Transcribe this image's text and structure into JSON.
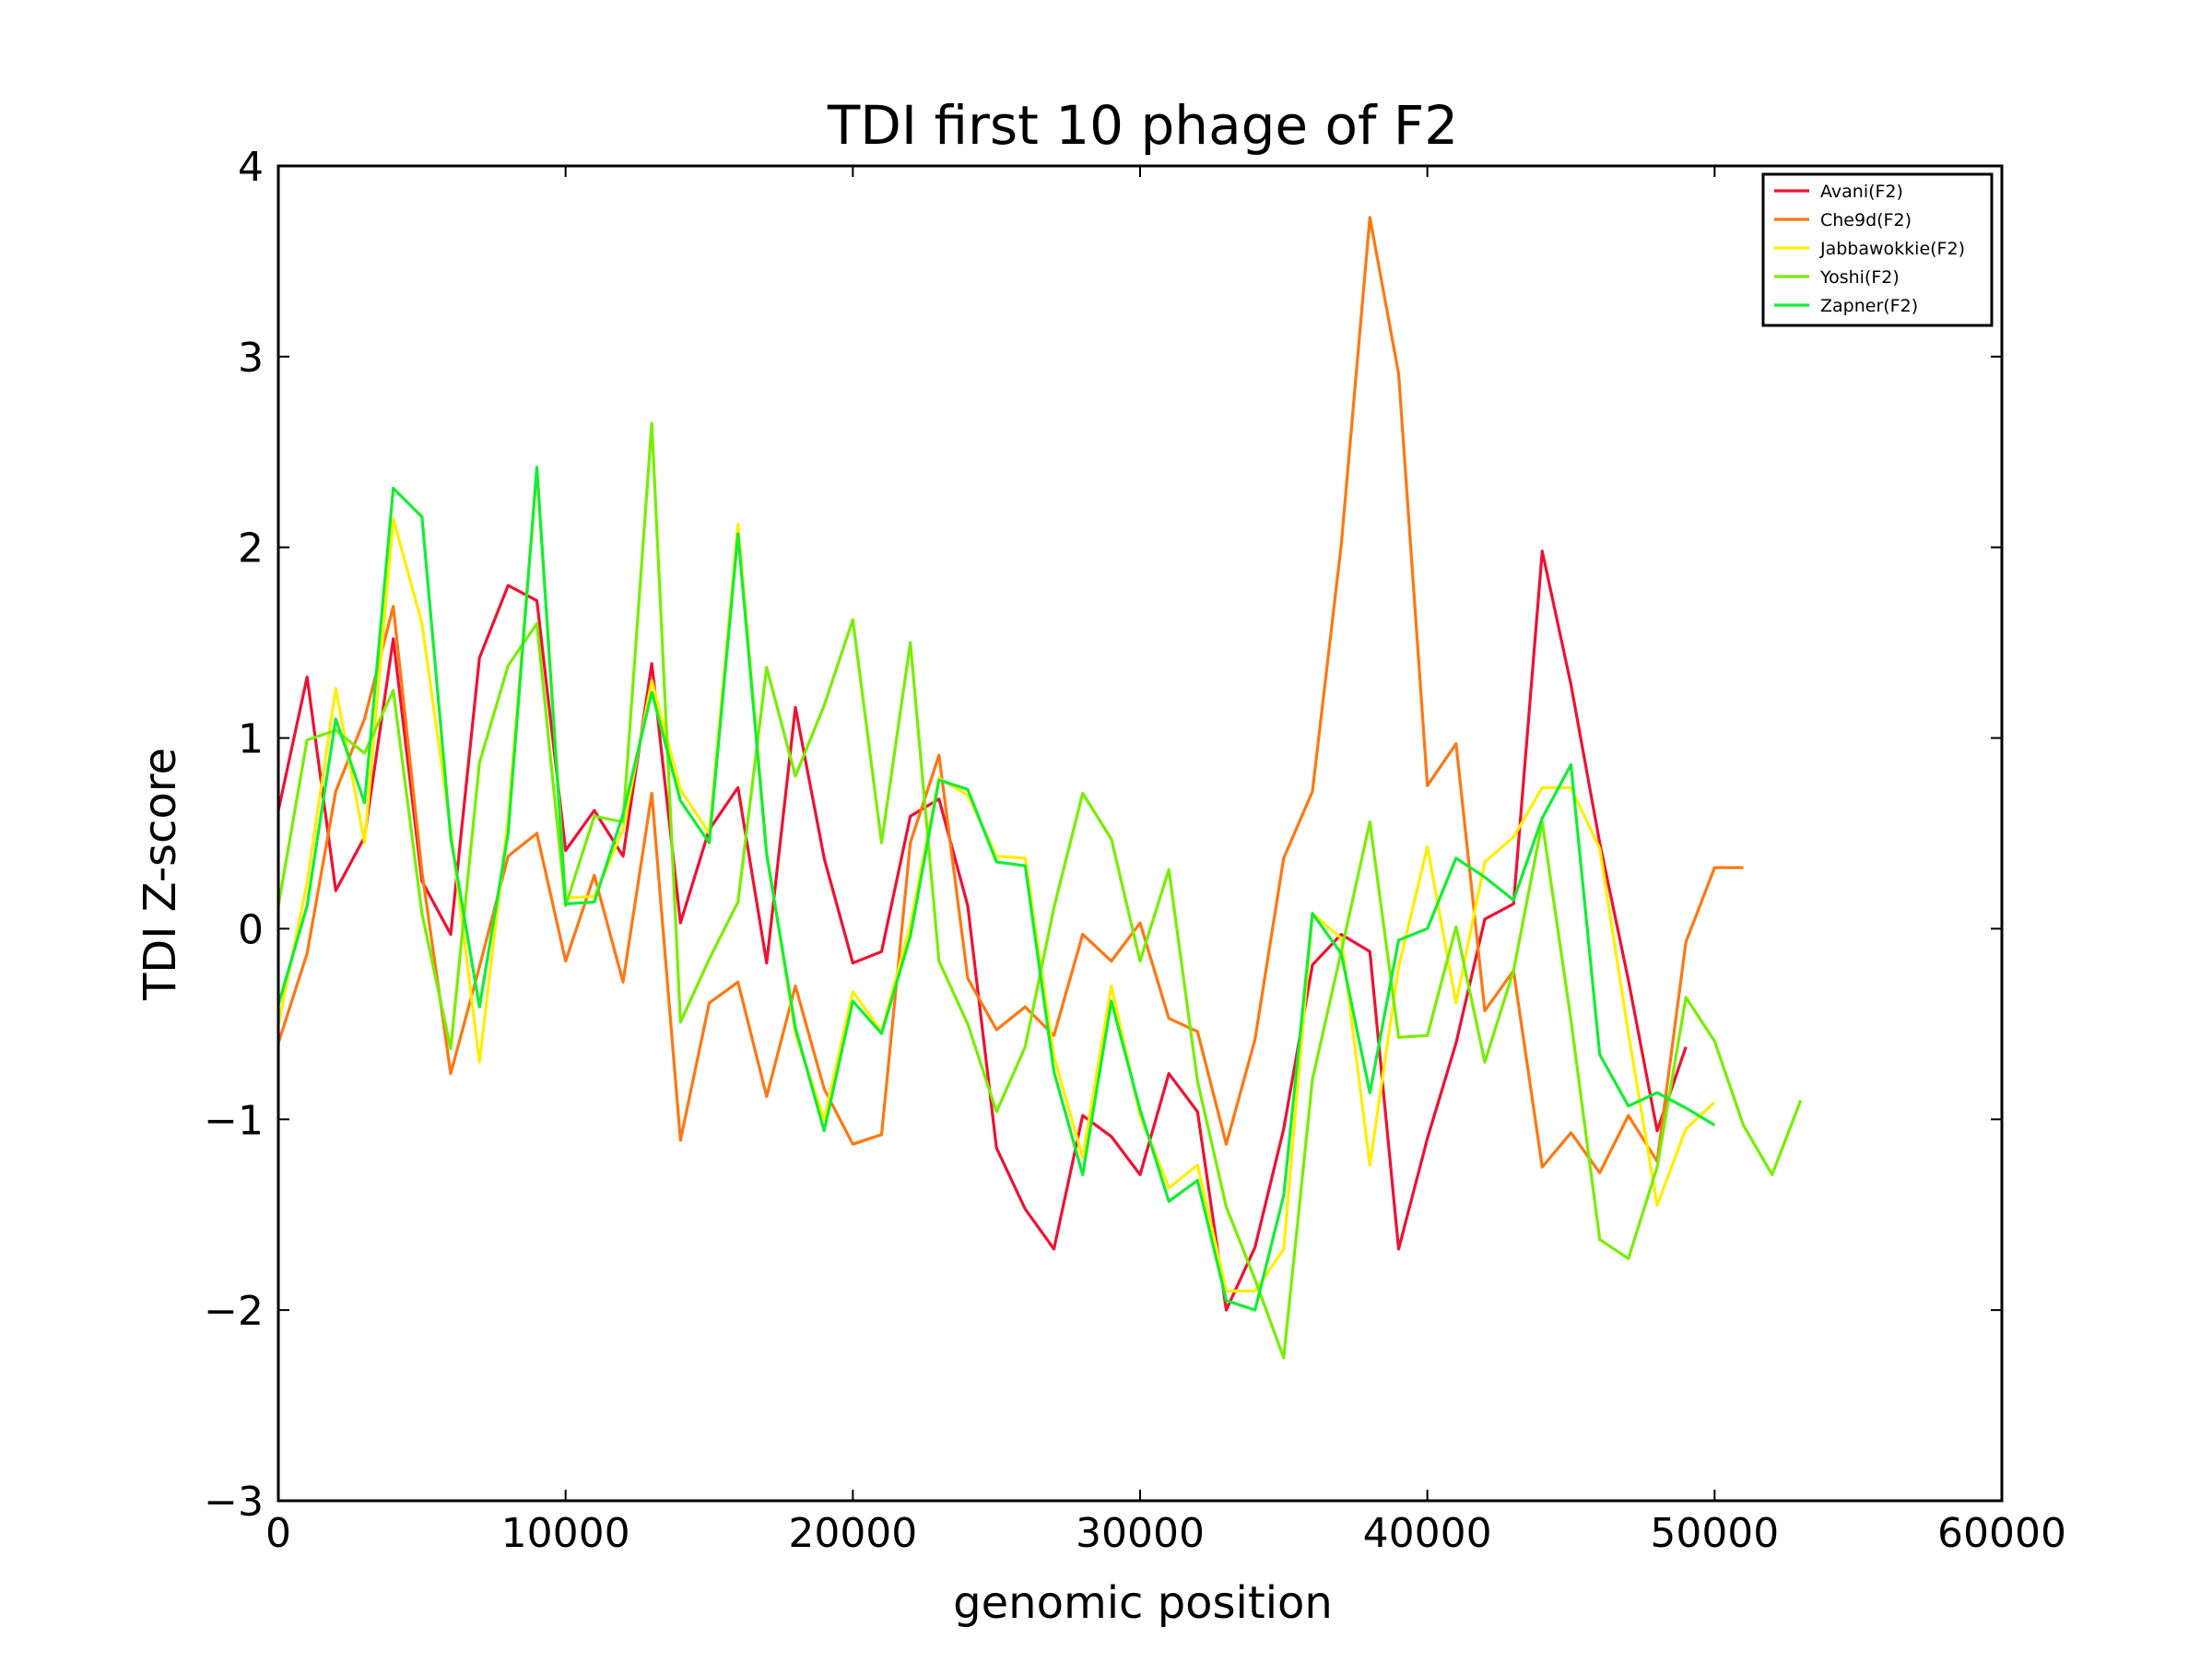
{
  "chart_data": {
    "type": "line",
    "title": "TDI first 10 phage of F2",
    "xlabel": "genomic position",
    "ylabel": "TDI Z-score",
    "xlim": [
      0,
      60000
    ],
    "ylim": [
      -3,
      4
    ],
    "xticks": [
      0,
      10000,
      20000,
      30000,
      40000,
      50000,
      60000
    ],
    "xtick_labels": [
      "0",
      "10000",
      "20000",
      "30000",
      "40000",
      "50000",
      "60000"
    ],
    "yticks": [
      -3,
      -2,
      -1,
      0,
      1,
      2,
      3,
      4
    ],
    "ytick_labels": [
      "−3",
      "−2",
      "−1",
      "0",
      "1",
      "2",
      "3",
      "4"
    ],
    "grid": false,
    "legend_position": "top-right",
    "series": [
      {
        "name": "Avani(F2)",
        "color": "#ee1133",
        "x": [
          0,
          1000,
          2000,
          3000,
          4000,
          5000,
          6000,
          7000,
          8000,
          9000,
          10000,
          11000,
          12000,
          13000,
          14000,
          15000,
          16000,
          17000,
          18000,
          19000,
          20000,
          21000,
          22000,
          23000,
          24000,
          25000,
          26000,
          27000,
          28000,
          29000,
          30000,
          31000,
          32000,
          33000,
          34000,
          35000,
          36000,
          37000,
          38000,
          39000,
          40000,
          41000,
          42000,
          43000,
          44000,
          45000,
          46000,
          47000,
          48000,
          49000
        ],
        "y": [
          0.62,
          1.32,
          0.2,
          0.48,
          1.52,
          0.25,
          -0.03,
          1.42,
          1.8,
          1.72,
          0.41,
          0.62,
          0.38,
          1.39,
          0.03,
          0.52,
          0.74,
          -0.18,
          1.16,
          0.37,
          -0.18,
          -0.12,
          0.59,
          0.68,
          0.12,
          -1.15,
          -1.47,
          -1.68,
          -0.98,
          -1.09,
          -1.29,
          -0.76,
          -0.96,
          -2.0,
          -1.67,
          -1.05,
          -0.19,
          -0.03,
          -0.12,
          -1.68,
          -1.1,
          -0.6,
          0.05,
          0.13,
          1.98,
          1.28,
          0.45,
          -0.27,
          -1.06,
          -0.62
        ]
      },
      {
        "name": "Che9d(F2)",
        "color": "#ff7711",
        "x": [
          0,
          1000,
          2000,
          3000,
          4000,
          5000,
          6000,
          7000,
          8000,
          9000,
          10000,
          11000,
          12000,
          13000,
          14000,
          15000,
          16000,
          17000,
          18000,
          19000,
          20000,
          21000,
          22000,
          23000,
          24000,
          25000,
          26000,
          27000,
          28000,
          29000,
          30000,
          31000,
          32000,
          33000,
          34000,
          35000,
          36000,
          37000,
          38000,
          39000,
          40000,
          41000,
          42000,
          43000,
          44000,
          45000,
          46000,
          47000,
          48000,
          49000,
          50000,
          51000
        ],
        "y": [
          -0.6,
          -0.13,
          0.72,
          1.1,
          1.69,
          0.3,
          -0.76,
          -0.2,
          0.38,
          0.5,
          -0.17,
          0.28,
          -0.28,
          0.71,
          -1.11,
          -0.39,
          -0.28,
          -0.88,
          -0.3,
          -0.84,
          -1.13,
          -1.08,
          0.45,
          0.91,
          -0.26,
          -0.53,
          -0.41,
          -0.56,
          -0.03,
          -0.17,
          0.03,
          -0.47,
          -0.54,
          -1.13,
          -0.58,
          0.37,
          0.72,
          2.01,
          3.73,
          2.91,
          0.75,
          0.97,
          -0.43,
          -0.22,
          -1.25,
          -1.07,
          -1.28,
          -0.98,
          -1.22,
          -0.07,
          0.32,
          0.32
        ]
      },
      {
        "name": "Jabbawokkie(F2)",
        "color": "#ffee00",
        "x": [
          0,
          1000,
          2000,
          3000,
          4000,
          5000,
          6000,
          7000,
          8000,
          9000,
          10000,
          11000,
          12000,
          13000,
          14000,
          15000,
          16000,
          17000,
          18000,
          19000,
          20000,
          21000,
          22000,
          23000,
          24000,
          25000,
          26000,
          27000,
          28000,
          29000,
          30000,
          31000,
          32000,
          33000,
          34000,
          35000,
          36000,
          37000,
          38000,
          39000,
          40000,
          41000,
          42000,
          43000,
          44000,
          45000,
          46000,
          47000,
          48000,
          49000,
          50000
        ],
        "y": [
          -0.5,
          0.24,
          1.26,
          0.45,
          2.15,
          1.6,
          0.52,
          -0.7,
          0.58,
          2.4,
          0.16,
          0.17,
          0.52,
          1.3,
          0.73,
          0.5,
          2.12,
          0.4,
          -0.55,
          -1.0,
          -0.33,
          -0.54,
          0.02,
          0.79,
          0.7,
          0.38,
          0.37,
          -0.67,
          -1.2,
          -0.3,
          -0.98,
          -1.36,
          -1.24,
          -1.9,
          -1.9,
          -1.68,
          0.08,
          -0.05,
          -1.24,
          -0.2,
          0.43,
          -0.39,
          0.35,
          0.48,
          0.74,
          0.74,
          0.42,
          -0.55,
          -1.45,
          -1.05,
          -0.91
        ]
      },
      {
        "name": "Yoshi(F2)",
        "color": "#77ee00",
        "x": [
          0,
          1000,
          2000,
          3000,
          4000,
          5000,
          6000,
          7000,
          8000,
          9000,
          10000,
          11000,
          12000,
          13000,
          14000,
          15000,
          16000,
          17000,
          18000,
          19000,
          20000,
          21000,
          22000,
          23000,
          24000,
          25000,
          26000,
          27000,
          28000,
          29000,
          30000,
          31000,
          32000,
          33000,
          34000,
          35000,
          36000,
          37000,
          38000,
          39000,
          40000,
          41000,
          42000,
          43000,
          44000,
          45000,
          46000,
          47000,
          48000,
          49000,
          50000,
          51000,
          52000,
          53000
        ],
        "y": [
          0.12,
          0.99,
          1.04,
          0.92,
          1.25,
          0.08,
          -0.63,
          0.87,
          1.38,
          1.6,
          0.12,
          0.59,
          0.56,
          2.65,
          -0.49,
          -0.16,
          0.14,
          1.37,
          0.8,
          1.17,
          1.62,
          0.45,
          1.5,
          -0.17,
          -0.5,
          -0.96,
          -0.62,
          0.11,
          0.71,
          0.47,
          -0.17,
          0.31,
          -0.8,
          -1.46,
          -1.84,
          -2.25,
          -0.79,
          -0.12,
          0.56,
          -0.57,
          -0.56,
          0.01,
          -0.7,
          -0.22,
          0.56,
          -0.48,
          -1.63,
          -1.73,
          -1.25,
          -0.36,
          -0.59,
          -1.03,
          -1.29,
          -0.9
        ]
      },
      {
        "name": "Zapner(F2)",
        "color": "#11ee33",
        "x": [
          0,
          1000,
          2000,
          3000,
          4000,
          5000,
          6000,
          7000,
          8000,
          9000,
          10000,
          11000,
          12000,
          13000,
          14000,
          15000,
          16000,
          17000,
          18000,
          19000,
          20000,
          21000,
          22000,
          23000,
          24000,
          25000,
          26000,
          27000,
          28000,
          29000,
          30000,
          31000,
          32000,
          33000,
          34000,
          35000,
          36000,
          37000,
          38000,
          39000,
          40000,
          41000,
          42000,
          43000,
          44000,
          45000,
          46000,
          47000,
          48000,
          49000,
          50000
        ],
        "y": [
          -0.4,
          0.12,
          1.1,
          0.66,
          2.31,
          2.16,
          0.48,
          -0.41,
          0.5,
          2.42,
          0.13,
          0.14,
          0.6,
          1.24,
          0.67,
          0.45,
          2.07,
          0.39,
          -0.52,
          -1.06,
          -0.38,
          -0.55,
          -0.04,
          0.78,
          0.73,
          0.35,
          0.33,
          -0.75,
          -1.29,
          -0.38,
          -0.95,
          -1.43,
          -1.32,
          -1.95,
          -2.0,
          -1.4,
          0.08,
          -0.13,
          -0.86,
          -0.06,
          0.0,
          0.37,
          0.27,
          0.15,
          0.58,
          0.86,
          -0.66,
          -0.93,
          -0.86,
          -0.94,
          -1.03
        ]
      }
    ]
  }
}
